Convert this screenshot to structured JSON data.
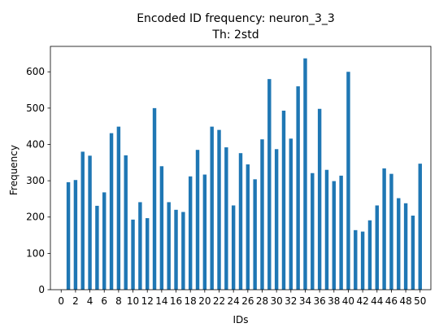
{
  "chart_data": {
    "type": "bar",
    "title": "Encoded ID frequency: neuron_3_3",
    "subtitle": "Th: 2std",
    "xlabel": "IDs",
    "ylabel": "Frequency",
    "xlim": [
      -1.5,
      51.5
    ],
    "ylim": [
      0,
      670
    ],
    "x_ticks": [
      0,
      2,
      4,
      6,
      8,
      10,
      12,
      14,
      16,
      18,
      20,
      22,
      24,
      26,
      28,
      30,
      32,
      34,
      36,
      38,
      40,
      42,
      44,
      46,
      48,
      50
    ],
    "y_ticks": [
      0,
      100,
      200,
      300,
      400,
      500,
      600
    ],
    "bar_width": 0.5,
    "grid": false,
    "color": "#1f77b4",
    "x": [
      1,
      2,
      3,
      4,
      5,
      6,
      7,
      8,
      9,
      10,
      11,
      12,
      13,
      14,
      15,
      16,
      17,
      18,
      19,
      20,
      21,
      22,
      23,
      24,
      25,
      26,
      27,
      28,
      29,
      30,
      31,
      32,
      33,
      34,
      35,
      36,
      37,
      38,
      39,
      40,
      41,
      42,
      43,
      44,
      45,
      46,
      47,
      48,
      49,
      50
    ],
    "values": [
      296,
      302,
      380,
      369,
      231,
      268,
      431,
      449,
      370,
      193,
      241,
      197,
      500,
      340,
      241,
      220,
      214,
      312,
      385,
      317,
      449,
      440,
      392,
      232,
      376,
      345,
      304,
      414,
      580,
      387,
      493,
      416,
      560,
      637,
      321,
      498,
      330,
      299,
      314,
      600,
      164,
      160,
      191,
      232,
      334,
      319,
      252,
      238,
      204,
      347
    ]
  }
}
